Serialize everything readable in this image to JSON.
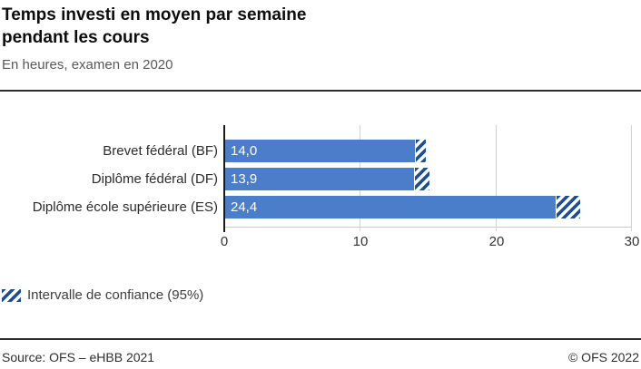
{
  "header": {
    "title_line1": "Temps investi en moyen par semaine",
    "title_line2": "pendant les cours",
    "subtitle": "En heures, examen en 2020"
  },
  "chart_data": {
    "type": "bar",
    "orientation": "horizontal",
    "title": "Temps investi en moyen par semaine pendant les cours",
    "subtitle": "En heures, examen en 2020",
    "unit": "heures par semaine",
    "categories": [
      "Brevet fédéral (BF)",
      "Diplôme fédéral (DF)",
      "Diplôme école supérieure (ES)"
    ],
    "values": [
      14.0,
      13.9,
      24.4
    ],
    "value_labels": [
      "14,0",
      "13,9",
      "24,4"
    ],
    "confidence_interval_half_width_hours": [
      0.7,
      1.1,
      1.7
    ],
    "xlim": [
      0,
      30
    ],
    "xticks": [
      "0",
      "10",
      "20",
      "30"
    ],
    "grid": true,
    "legend_position": "bottom-left",
    "colors": {
      "bar": "#4a7dca",
      "ci_hatch": "#1d4e94",
      "gridline": "#d2d2d2",
      "axis": "#1a1a1a"
    }
  },
  "legend": {
    "label": "Intervalle de confiance (95%)",
    "swatch": "hatched-diagonal"
  },
  "footer": {
    "source": "Source: OFS – eHBB 2021",
    "copyright": "© OFS 2022"
  }
}
